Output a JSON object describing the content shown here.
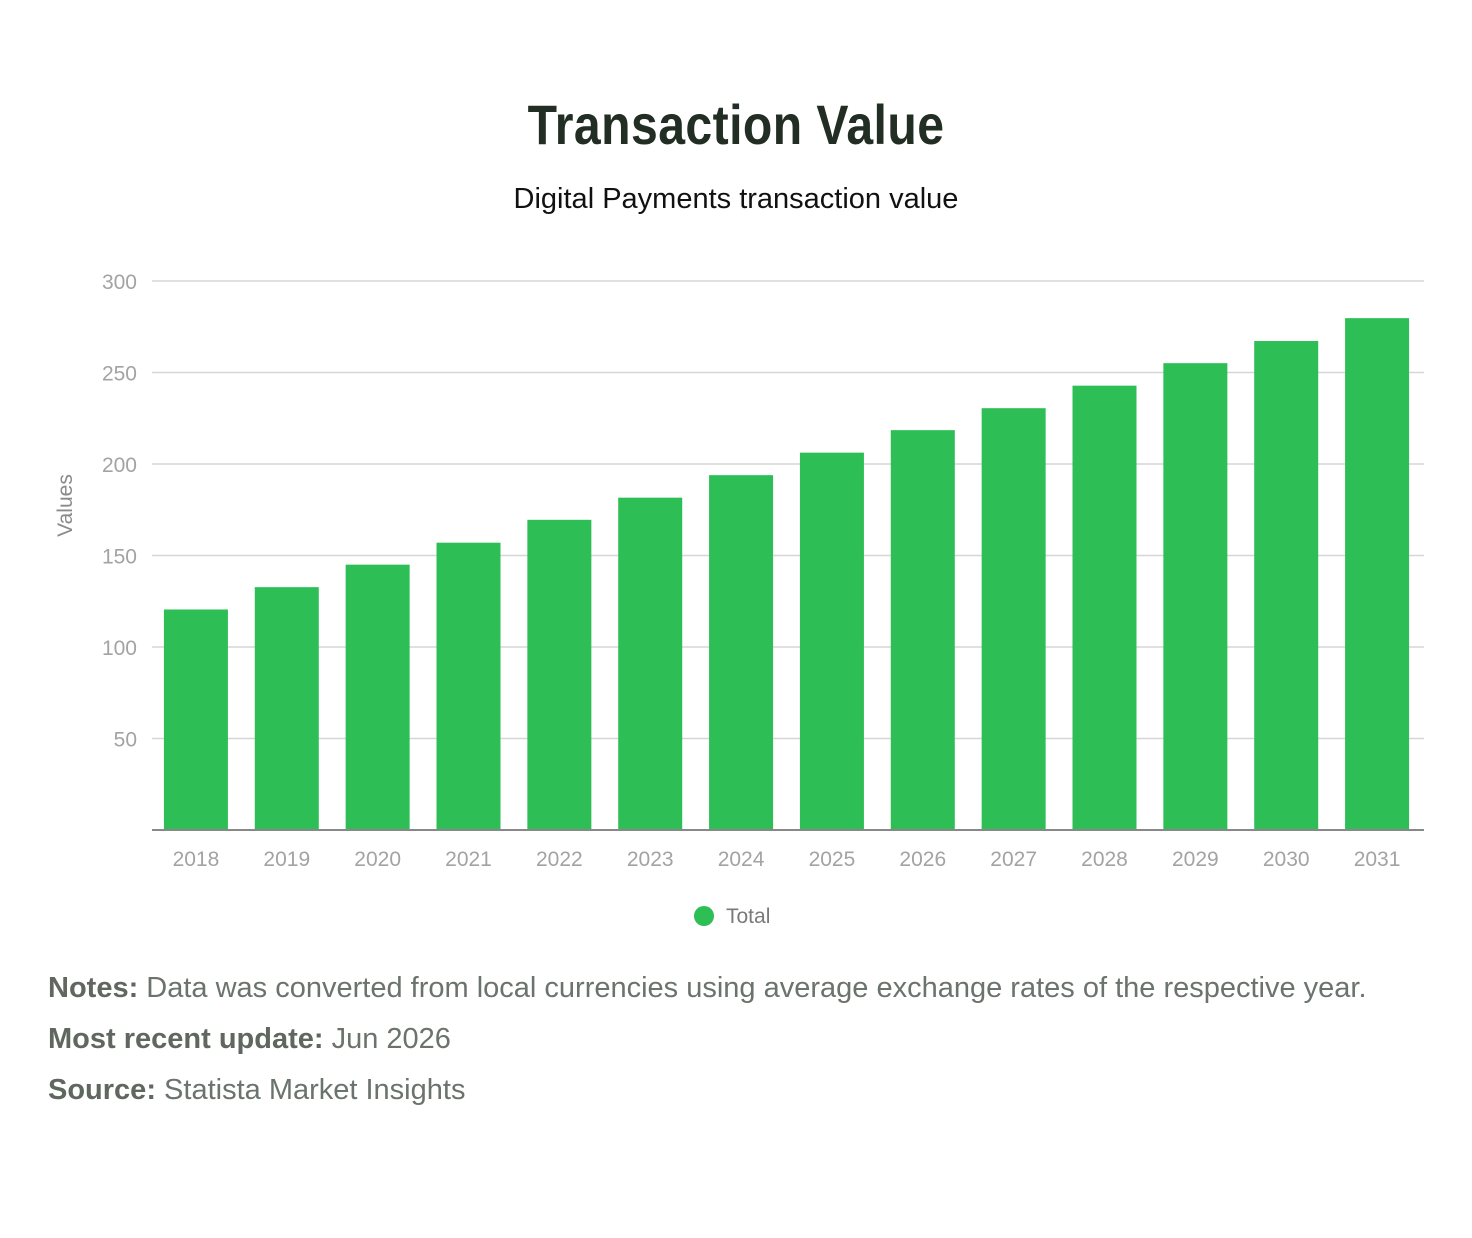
{
  "title": "Transaction Value",
  "subtitle": "Digital Payments transaction value",
  "colors": {
    "bar": "#2dbe55",
    "grid": "#d6d6d6",
    "axis": "#888888",
    "tick": "#a3a3a3"
  },
  "chart_data": {
    "type": "bar",
    "categories": [
      "2018",
      "2019",
      "2020",
      "2021",
      "2022",
      "2023",
      "2024",
      "2025",
      "2026",
      "2027",
      "2028",
      "2029",
      "2030",
      "2031"
    ],
    "series": [
      {
        "name": "Total",
        "values": [
          120.5,
          132.7,
          145.0,
          157.0,
          169.5,
          181.6,
          193.9,
          206.2,
          218.5,
          230.5,
          242.8,
          255.1,
          267.2,
          279.7
        ]
      }
    ],
    "ylabel": "Values",
    "xlabel": "",
    "ylim": [
      0,
      300
    ],
    "yticks": [
      50,
      100,
      150,
      200,
      250,
      300
    ],
    "grid": true,
    "legend_position": "bottom-center"
  },
  "notes": {
    "notes_label": "Notes:",
    "notes_text": " Data was converted from local currencies using average exchange rates of the respective year.",
    "update_label": "Most recent update:",
    "update_text": " Jun 2026",
    "source_label": "Source:",
    "source_text": " Statista Market Insights"
  }
}
